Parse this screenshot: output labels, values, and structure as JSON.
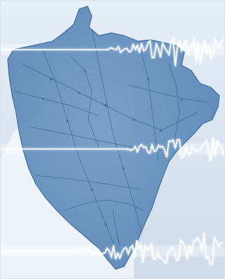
{
  "image": {
    "subject": "map-with-seismic-waves",
    "palette": {
      "background_top": "#e6eef7",
      "background_bottom": "#cfdbe9",
      "light_wedge": "#f2f6fb",
      "map_fill": "#6e98c4",
      "map_fill_dark": "#4f7eb1",
      "map_edge": "#3f6f9f",
      "road": "#2f5f92",
      "wave_line": "#ffffff",
      "wave_glow": "#f8fbff"
    },
    "icons": [
      "region-map-icon",
      "seismograph-trace-icon"
    ]
  }
}
